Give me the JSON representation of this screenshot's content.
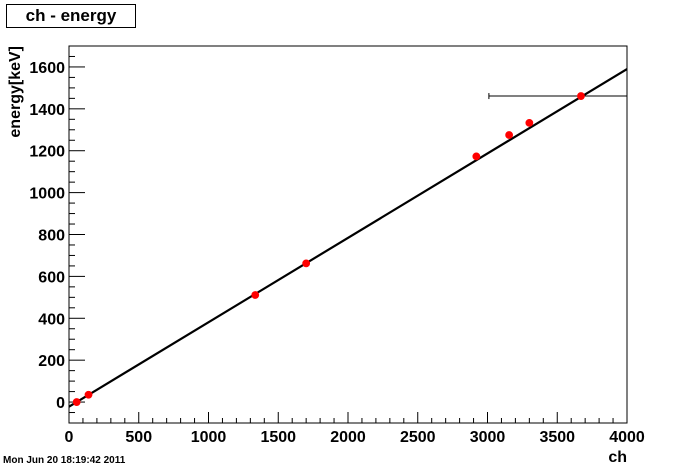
{
  "chart_data": {
    "type": "scatter",
    "title": "ch - energy",
    "xlabel": "ch",
    "ylabel": "energy[keV]",
    "xlim": [
      0,
      4000
    ],
    "ylim": [
      -100,
      1700
    ],
    "xticks": [
      0,
      500,
      1000,
      1500,
      2000,
      2500,
      3000,
      3500,
      4000
    ],
    "yticks": [
      0,
      200,
      400,
      600,
      800,
      1000,
      1200,
      1400,
      1600
    ],
    "grid": false,
    "legend": "none",
    "series": [
      {
        "points": [
          {
            "x": 55,
            "y": 0
          },
          {
            "x": 140,
            "y": 35
          },
          {
            "x": 1335,
            "y": 511
          },
          {
            "x": 1700,
            "y": 662
          },
          {
            "x": 2920,
            "y": 1173
          },
          {
            "x": 3155,
            "y": 1275
          },
          {
            "x": 3300,
            "y": 1333
          },
          {
            "x": 3670,
            "y": 1461,
            "xerr_low": 3010,
            "xerr_high": 4000
          }
        ]
      }
    ],
    "fit_line": {
      "x": [
        0,
        4000
      ],
      "y": [
        -22,
        1590
      ]
    },
    "colors": {
      "points": "#ff0000",
      "line": "#000000",
      "axes": "#000000"
    }
  },
  "footer": {
    "timestamp": "Mon Jun 20 18:19:42 2011"
  }
}
